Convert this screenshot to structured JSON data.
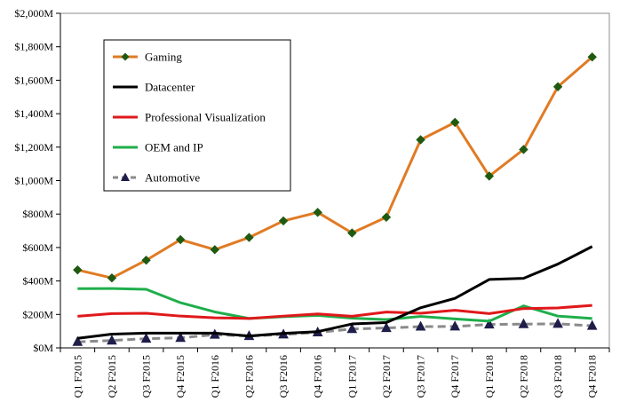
{
  "chart_data": {
    "type": "line",
    "categories": [
      "Q1 F2015",
      "Q2 F2015",
      "Q3 F2015",
      "Q4 F2015",
      "Q1 F2016",
      "Q2 F2016",
      "Q3 F2016",
      "Q4 F2016",
      "Q1 F2017",
      "Q2 F2017",
      "Q3 F2017",
      "Q4 F2017",
      "Q1 F2018",
      "Q2 F2018",
      "Q3 F2018",
      "Q4 F2018"
    ],
    "ylim": [
      0,
      2000
    ],
    "yticks": [
      0,
      200,
      400,
      600,
      800,
      1000,
      1200,
      1400,
      1600,
      1800,
      2000
    ],
    "ytick_labels": [
      "$0M",
      "$200M",
      "$400M",
      "$600M",
      "$800M",
      "$1,000M",
      "$1,200M",
      "$1,400M",
      "$1,600M",
      "$1,800M",
      "$2,000M"
    ],
    "grid": false,
    "legend_position": "upper-left",
    "series": [
      {
        "name": "Gaming",
        "color": "#e07b24",
        "marker": "diamond",
        "dashed": false,
        "values": [
          466,
          418,
          524,
          647,
          587,
          660,
          759,
          810,
          687,
          781,
          1244,
          1348,
          1027,
          1186,
          1561,
          1739
        ]
      },
      {
        "name": "Datacenter",
        "color": "#000000",
        "marker": "none",
        "dashed": false,
        "values": [
          57,
          82,
          88,
          88,
          88,
          71,
          87,
          97,
          143,
          151,
          240,
          296,
          409,
          416,
          501,
          606
        ]
      },
      {
        "name": "Professional Visualization",
        "color": "#e0181b",
        "marker": "none",
        "dashed": false,
        "values": [
          189,
          205,
          207,
          190,
          180,
          176,
          190,
          203,
          189,
          214,
          207,
          225,
          205,
          235,
          239,
          254
        ]
      },
      {
        "name": "OEM and IP",
        "color": "#1fae4b",
        "marker": "none",
        "dashed": false,
        "values": [
          354,
          355,
          350,
          270,
          215,
          176,
          186,
          194,
          178,
          169,
          188,
          173,
          160,
          251,
          190,
          176
        ]
      },
      {
        "name": "Automotive",
        "color": "#8a8a8a",
        "marker": "triangle",
        "dashed": true,
        "values": [
          36,
          44,
          55,
          60,
          79,
          71,
          80,
          93,
          113,
          119,
          127,
          128,
          140,
          142,
          144,
          132
        ]
      }
    ]
  }
}
